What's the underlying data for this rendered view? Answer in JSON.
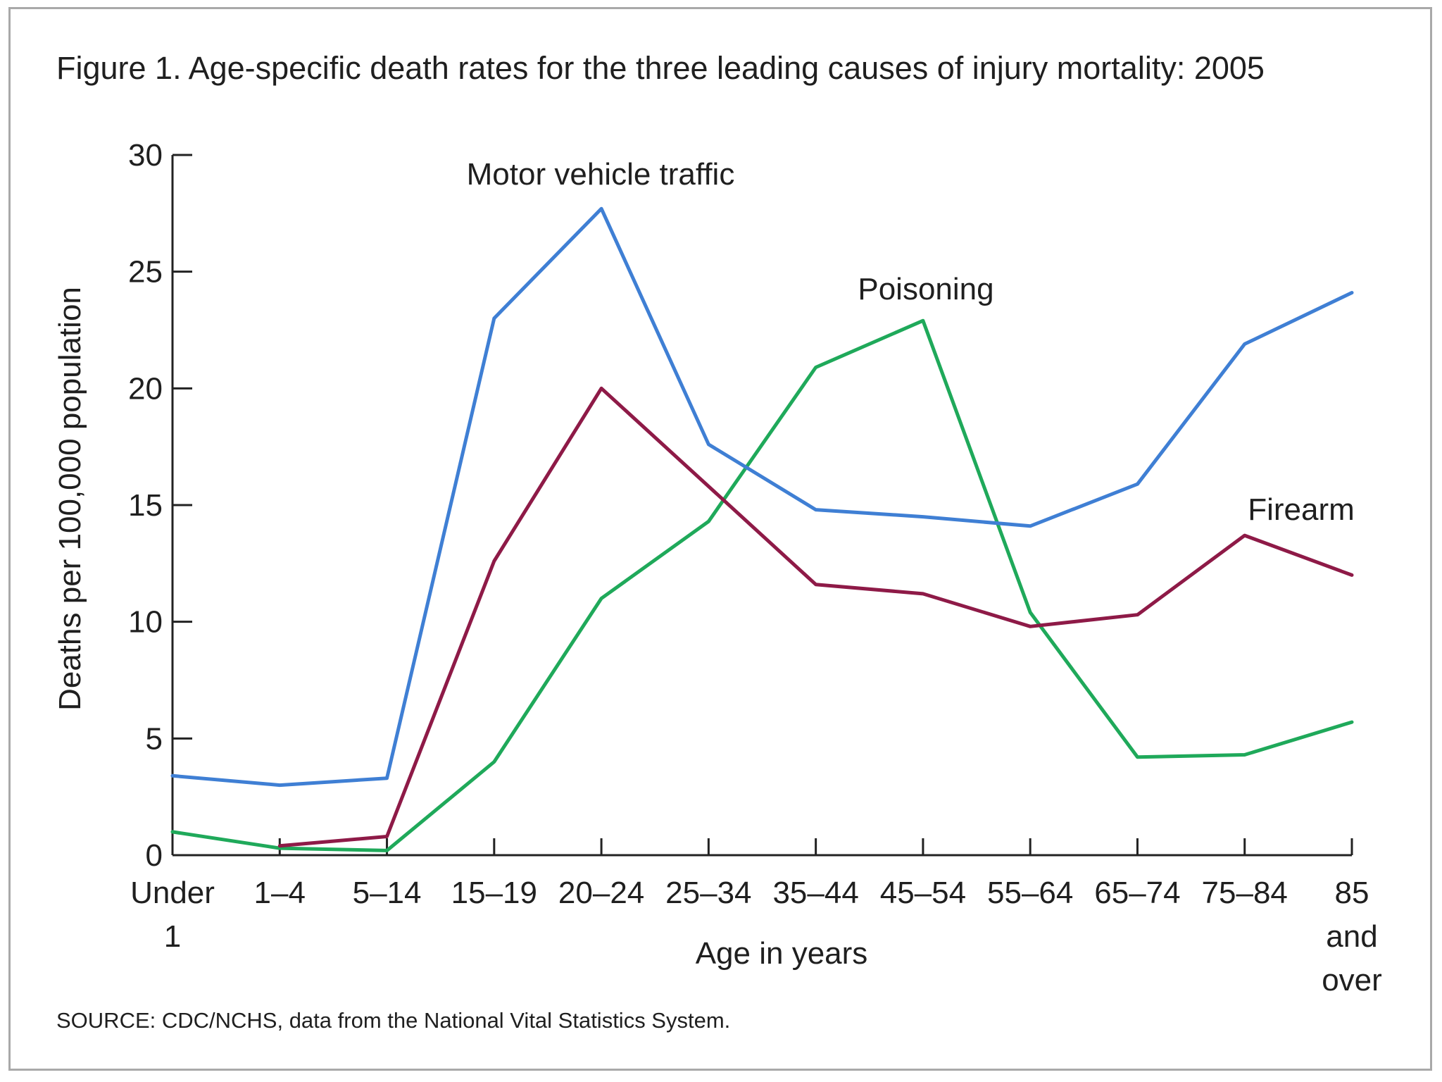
{
  "chart_data": {
    "type": "line",
    "title": "Figure 1. Age-specific death rates for the three leading causes of injury mortality: 2005",
    "xlabel": "Age in years",
    "ylabel": "Deaths per 100,000 population",
    "source": "SOURCE: CDC/NCHS, data from the National Vital Statistics System.",
    "categories": [
      [
        "Under",
        "1"
      ],
      [
        "1–4"
      ],
      [
        "5–14"
      ],
      [
        "15–19"
      ],
      [
        "20–24"
      ],
      [
        "25–34"
      ],
      [
        "35–44"
      ],
      [
        "45–54"
      ],
      [
        "55–64"
      ],
      [
        "65–74"
      ],
      [
        "75–84"
      ],
      [
        "85",
        "and",
        "over"
      ]
    ],
    "ylim": [
      0,
      30
    ],
    "yticks": [
      0,
      5,
      10,
      15,
      20,
      25,
      30
    ],
    "grid": false,
    "series": [
      {
        "name": "Motor vehicle traffic",
        "color": "#3f7fd4",
        "values": [
          3.4,
          3.0,
          3.3,
          23.0,
          27.7,
          17.6,
          14.8,
          14.5,
          14.1,
          15.9,
          21.9,
          24.1
        ]
      },
      {
        "name": "Poisoning",
        "color": "#1fa95a",
        "values": [
          1.0,
          0.3,
          0.2,
          4.0,
          11.0,
          14.3,
          20.9,
          22.9,
          10.4,
          4.2,
          4.3,
          5.7
        ]
      },
      {
        "name": "Firearm",
        "color": "#8e1a47",
        "values": [
          null,
          0.4,
          0.8,
          12.6,
          20.0,
          15.8,
          11.6,
          11.2,
          9.8,
          10.3,
          13.7,
          12.0
        ]
      }
    ]
  }
}
